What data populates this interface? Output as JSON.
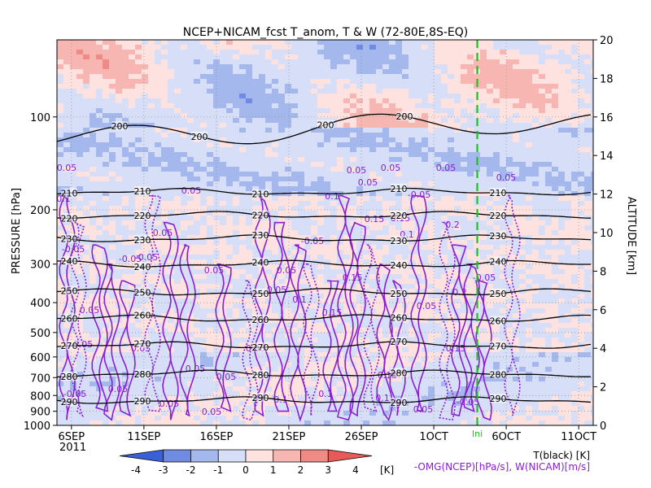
{
  "chart_data": {
    "type": "heatmap",
    "title": "NCEP+NICAM_fcst T_anom, T & W  (72-80E,8S-EQ)",
    "ylabel_left": "PRESSURE [hPa]",
    "ylabel_right": "ALTITUDE [km]",
    "pressure_ticks": [
      100,
      200,
      300,
      400,
      500,
      600,
      700,
      800,
      900,
      1000
    ],
    "pressure_range": [
      1000,
      60
    ],
    "altitude_ticks": [
      0,
      2,
      4,
      6,
      8,
      10,
      12,
      14,
      16,
      18,
      20
    ],
    "altitude_range": [
      0,
      20
    ],
    "x_ticks": [
      {
        "label": "6SEP",
        "day": 6
      },
      {
        "label": "11SEP",
        "day": 11
      },
      {
        "label": "16SEP",
        "day": 16
      },
      {
        "label": "21SEP",
        "day": 21
      },
      {
        "label": "26SEP",
        "day": 26
      },
      {
        "label": "1OCT",
        "day": 31
      },
      {
        "label": "6OCT",
        "day": 36
      },
      {
        "label": "11OCT",
        "day": 41
      }
    ],
    "x_year": "2011",
    "x_range_days": [
      5,
      42
    ],
    "init_label": "Ini",
    "init_day": 34,
    "temperature_contours_K": [
      {
        "label": "290",
        "pressure": 830
      },
      {
        "label": "280",
        "pressure": 680
      },
      {
        "label": "270",
        "pressure": 550
      },
      {
        "label": "260",
        "pressure": 450
      },
      {
        "label": "250",
        "pressure": 370
      },
      {
        "label": "240",
        "pressure": 300
      },
      {
        "label": "230",
        "pressure": 248
      },
      {
        "label": "220",
        "pressure": 208
      },
      {
        "label": "210",
        "pressure": 175
      },
      {
        "label": "200",
        "pressure": 110
      }
    ],
    "w_contour_labels": [
      "0.05",
      "-0.05",
      "0.1",
      "0.15",
      "0.2"
    ],
    "colorbar": {
      "ticks": [
        "-4",
        "-3",
        "-2",
        "-1",
        "0",
        "1",
        "2",
        "3",
        "4"
      ],
      "unit": "[K]",
      "colors": [
        "#3a60d8",
        "#6f8ce2",
        "#a4b8ee",
        "#d6dff7",
        "#fde2e0",
        "#f7b6b1",
        "#ef8a85",
        "#e65a58"
      ]
    },
    "legend_T": "T(black) [K]",
    "legend_W": "-OMG(NCEP)[hPa/s], W(NICAM)[m/s]"
  }
}
